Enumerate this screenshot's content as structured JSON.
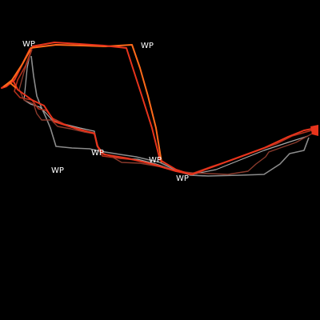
{
  "map": {
    "background_color": "#000000",
    "label_color": "#ffffff",
    "waypoints": [
      {
        "id": "wp-1",
        "label": "WP"
      },
      {
        "id": "wp-2",
        "label": "WP"
      },
      {
        "id": "wp-3",
        "label": "WP"
      },
      {
        "id": "wp-4",
        "label": "WP"
      },
      {
        "id": "wp-5",
        "label": "WP"
      },
      {
        "id": "wp-6",
        "label": "WP"
      }
    ],
    "routes": [
      {
        "id": "route-orange",
        "color": "#ff6a1a"
      },
      {
        "id": "route-red",
        "color": "#e8341c"
      },
      {
        "id": "route-dark-red",
        "color": "#b0301c"
      },
      {
        "id": "route-brown",
        "color": "#8a3a2c"
      },
      {
        "id": "route-gray",
        "color": "#8c8c8c"
      },
      {
        "id": "route-light-gray",
        "color": "#a8a8a8"
      }
    ]
  }
}
